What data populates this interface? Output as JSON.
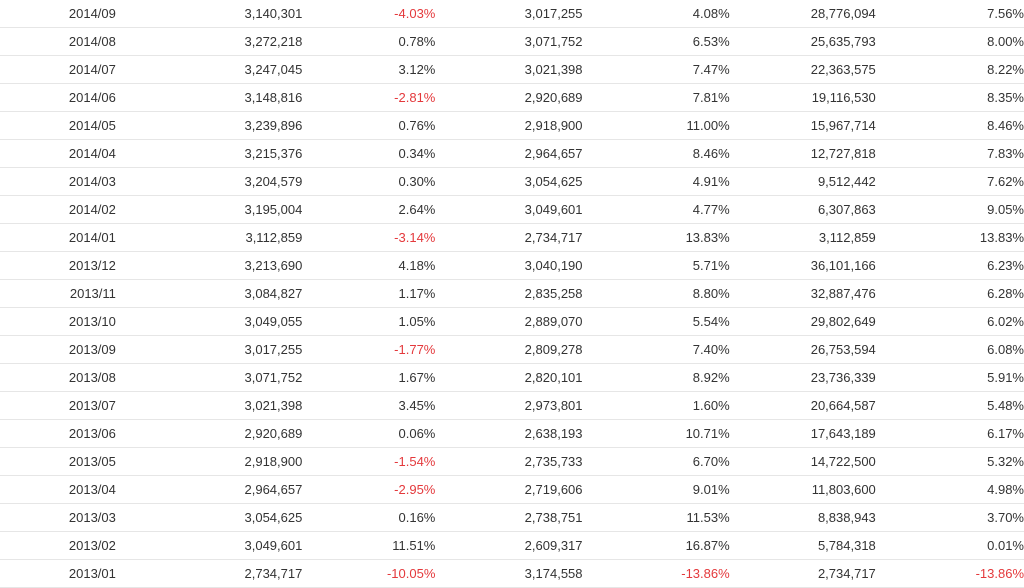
{
  "colors": {
    "negative": "#e4393c",
    "text": "#333333",
    "row_border": "#e6e6e6"
  },
  "rows": [
    [
      "2014/09",
      "3,140,301",
      "-4.03%",
      "3,017,255",
      "4.08%",
      "28,776,094",
      "7.56%"
    ],
    [
      "2014/08",
      "3,272,218",
      "0.78%",
      "3,071,752",
      "6.53%",
      "25,635,793",
      "8.00%"
    ],
    [
      "2014/07",
      "3,247,045",
      "3.12%",
      "3,021,398",
      "7.47%",
      "22,363,575",
      "8.22%"
    ],
    [
      "2014/06",
      "3,148,816",
      "-2.81%",
      "2,920,689",
      "7.81%",
      "19,116,530",
      "8.35%"
    ],
    [
      "2014/05",
      "3,239,896",
      "0.76%",
      "2,918,900",
      "11.00%",
      "15,967,714",
      "8.46%"
    ],
    [
      "2014/04",
      "3,215,376",
      "0.34%",
      "2,964,657",
      "8.46%",
      "12,727,818",
      "7.83%"
    ],
    [
      "2014/03",
      "3,204,579",
      "0.30%",
      "3,054,625",
      "4.91%",
      "9,512,442",
      "7.62%"
    ],
    [
      "2014/02",
      "3,195,004",
      "2.64%",
      "3,049,601",
      "4.77%",
      "6,307,863",
      "9.05%"
    ],
    [
      "2014/01",
      "3,112,859",
      "-3.14%",
      "2,734,717",
      "13.83%",
      "3,112,859",
      "13.83%"
    ],
    [
      "2013/12",
      "3,213,690",
      "4.18%",
      "3,040,190",
      "5.71%",
      "36,101,166",
      "6.23%"
    ],
    [
      "2013/11",
      "3,084,827",
      "1.17%",
      "2,835,258",
      "8.80%",
      "32,887,476",
      "6.28%"
    ],
    [
      "2013/10",
      "3,049,055",
      "1.05%",
      "2,889,070",
      "5.54%",
      "29,802,649",
      "6.02%"
    ],
    [
      "2013/09",
      "3,017,255",
      "-1.77%",
      "2,809,278",
      "7.40%",
      "26,753,594",
      "6.08%"
    ],
    [
      "2013/08",
      "3,071,752",
      "1.67%",
      "2,820,101",
      "8.92%",
      "23,736,339",
      "5.91%"
    ],
    [
      "2013/07",
      "3,021,398",
      "3.45%",
      "2,973,801",
      "1.60%",
      "20,664,587",
      "5.48%"
    ],
    [
      "2013/06",
      "2,920,689",
      "0.06%",
      "2,638,193",
      "10.71%",
      "17,643,189",
      "6.17%"
    ],
    [
      "2013/05",
      "2,918,900",
      "-1.54%",
      "2,735,733",
      "6.70%",
      "14,722,500",
      "5.32%"
    ],
    [
      "2013/04",
      "2,964,657",
      "-2.95%",
      "2,719,606",
      "9.01%",
      "11,803,600",
      "4.98%"
    ],
    [
      "2013/03",
      "3,054,625",
      "0.16%",
      "2,738,751",
      "11.53%",
      "8,838,943",
      "3.70%"
    ],
    [
      "2013/02",
      "3,049,601",
      "11.51%",
      "2,609,317",
      "16.87%",
      "5,784,318",
      "0.01%"
    ],
    [
      "2013/01",
      "2,734,717",
      "-10.05%",
      "3,174,558",
      "-13.86%",
      "2,734,717",
      "-13.86%"
    ]
  ]
}
